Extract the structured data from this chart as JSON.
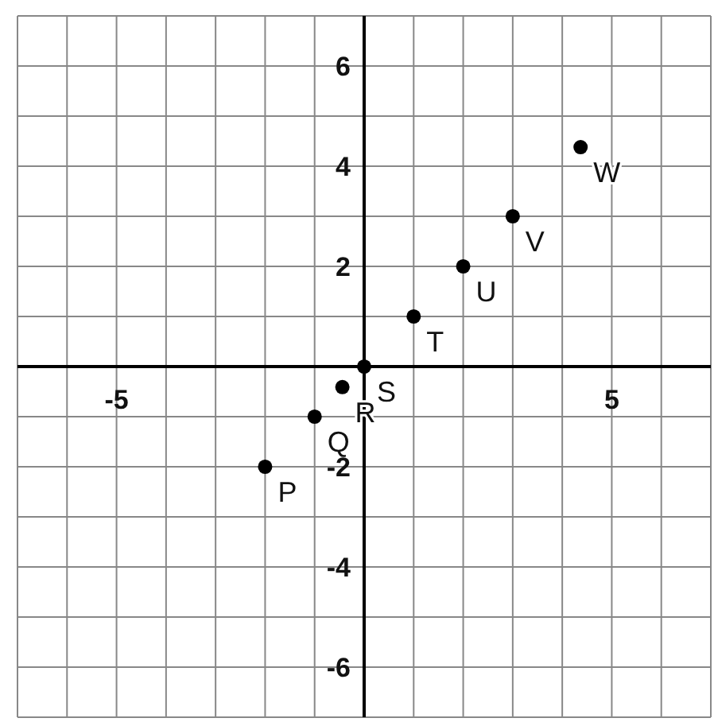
{
  "chart_data": {
    "type": "scatter",
    "x": [
      -2,
      -1,
      -0.44,
      0,
      1,
      2,
      3,
      4.37
    ],
    "values": [
      -2,
      -1,
      -0.41,
      0,
      1,
      2,
      3,
      4.38
    ],
    "color": "#000000",
    "marker": "circle",
    "grid": true,
    "xlim": [
      -7,
      7
    ],
    "ylim": [
      -7,
      7
    ],
    "xticks": [
      {
        "value": -7,
        "label": null
      },
      {
        "value": -6,
        "label": null
      },
      -5,
      {
        "value": -4,
        "label": null
      },
      {
        "value": -3,
        "label": null
      },
      {
        "value": -2,
        "label": null
      },
      {
        "value": -1,
        "label": null
      },
      {
        "value": 0,
        "label": null
      },
      {
        "value": 1,
        "label": null
      },
      {
        "value": 2,
        "label": null
      },
      {
        "value": 3,
        "label": null
      },
      {
        "value": 4,
        "label": null
      },
      5,
      {
        "value": 6,
        "label": null
      },
      {
        "value": 7,
        "label": null
      }
    ],
    "yticks": [
      {
        "value": -7,
        "label": null
      },
      -6,
      {
        "value": -5,
        "label": null
      },
      -4,
      {
        "value": -3,
        "label": null
      },
      -2,
      {
        "value": -1,
        "label": null
      },
      {
        "value": 0,
        "label": null
      },
      {
        "value": 1,
        "label": null
      },
      2,
      {
        "value": 3,
        "label": null
      },
      4,
      {
        "value": 5,
        "label": null
      },
      6,
      {
        "value": 7,
        "label": null
      }
    ],
    "annotations": [
      {
        "text": "P",
        "x": -2,
        "y": -2
      },
      {
        "text": "Q",
        "x": -1,
        "y": -1
      },
      {
        "text": "R",
        "x": -0.44,
        "y": -0.41
      },
      {
        "text": "S",
        "x": 0,
        "y": 0
      },
      {
        "text": "T",
        "x": 1,
        "y": 1
      },
      {
        "text": "U",
        "x": 2,
        "y": 2
      },
      {
        "text": "V",
        "x": 3,
        "y": 3
      },
      {
        "text": "W",
        "x": 4.37,
        "y": 4.38
      }
    ]
  }
}
